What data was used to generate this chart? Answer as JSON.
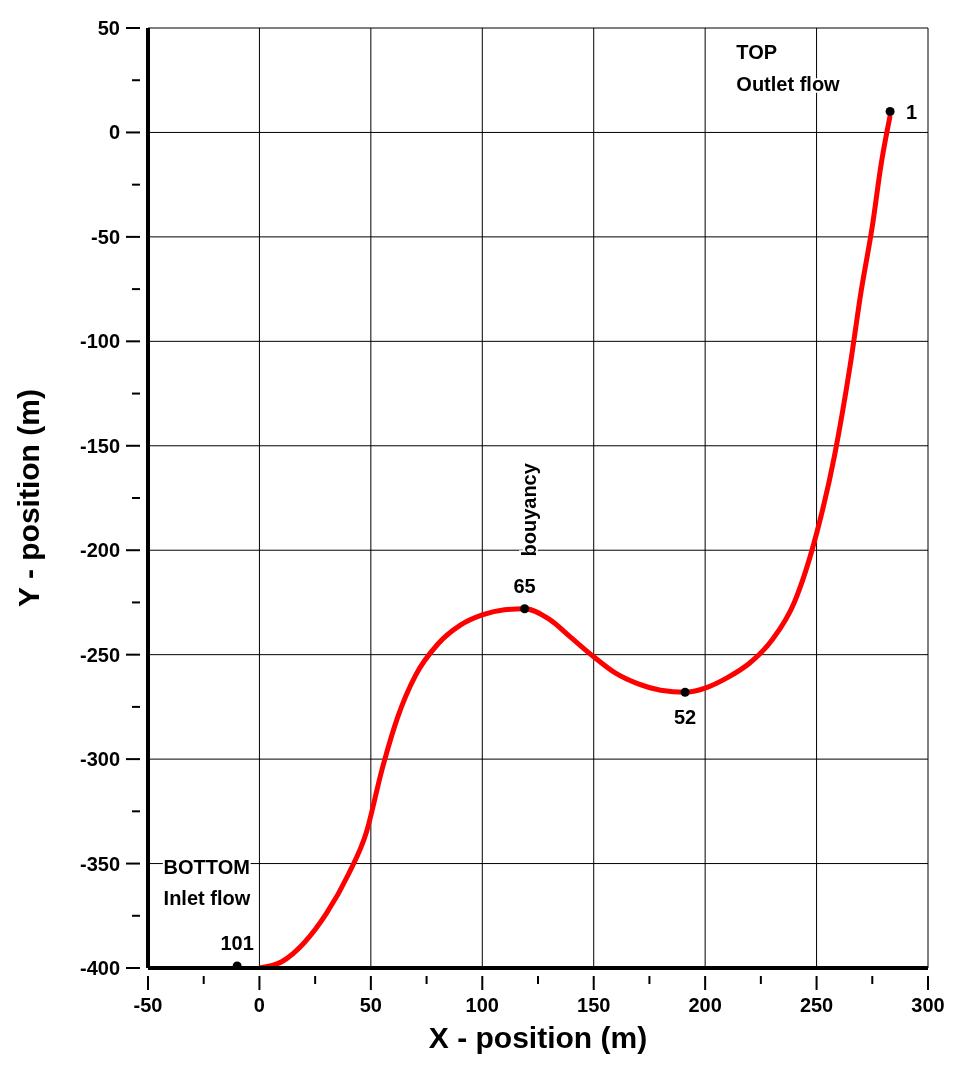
{
  "chart_data": {
    "type": "line",
    "xlabel": "X - position  (m)",
    "ylabel": "Y - position  (m)",
    "xlim": [
      -50,
      300
    ],
    "ylim": [
      -400,
      50
    ],
    "xticks": [
      -50,
      {
        "value": -25,
        "label": null
      },
      0,
      {
        "value": 25,
        "label": null
      },
      50,
      {
        "value": 75,
        "label": null
      },
      100,
      {
        "value": 125,
        "label": null
      },
      150,
      {
        "value": 175,
        "label": null
      },
      200,
      {
        "value": 225,
        "label": null
      },
      250,
      {
        "value": 275,
        "label": null
      },
      300
    ],
    "yticks": [
      -400,
      {
        "value": -375,
        "label": null
      },
      -350,
      {
        "value": -325,
        "label": null
      },
      -300,
      {
        "value": -275,
        "label": null
      },
      -250,
      {
        "value": -225,
        "label": null
      },
      -200,
      {
        "value": -175,
        "label": null
      },
      -150,
      {
        "value": -125,
        "label": null
      },
      -100,
      {
        "value": -75,
        "label": null
      },
      -50,
      {
        "value": -25,
        "label": null
      },
      0,
      {
        "value": 25,
        "label": null
      },
      50
    ],
    "grid": true,
    "legend": false,
    "series": [
      {
        "color": "#ff0000",
        "marker": "none",
        "x": [
          0,
          10,
          20,
          30,
          40,
          48,
          55,
          62,
          70,
          80,
          90,
          100,
          110,
          119,
          130,
          140,
          150,
          160,
          170,
          180,
          191,
          200,
          210,
          220,
          230,
          240,
          250,
          258,
          265,
          270,
          275,
          279,
          283
        ],
        "values": [
          -400,
          -397,
          -388,
          -374,
          -355,
          -335,
          -305,
          -280,
          -260,
          -245,
          -236,
          -231,
          -228.5,
          -228,
          -233,
          -242,
          -251,
          -259,
          -264,
          -267,
          -268,
          -266,
          -261,
          -254,
          -243,
          -225,
          -192,
          -155,
          -112,
          -76,
          -45,
          -15,
          8
        ]
      },
      {
        "type": "scatter",
        "color": "#000000",
        "marker": "circle",
        "x": [
          283,
          119,
          191,
          -10
        ],
        "values": [
          10,
          -228,
          -268,
          -399
        ]
      }
    ],
    "annotations": [
      "TOP",
      "Outlet flow",
      "bouyancy",
      "BOTTOM",
      "Inlet flow",
      {
        "text": "1",
        "x": 283,
        "y": 10
      },
      {
        "text": "65",
        "x": 119,
        "y": -228
      },
      {
        "text": "52",
        "x": 191,
        "y": -268
      },
      {
        "text": "101",
        "x": -10,
        "y": -399
      }
    ]
  }
}
